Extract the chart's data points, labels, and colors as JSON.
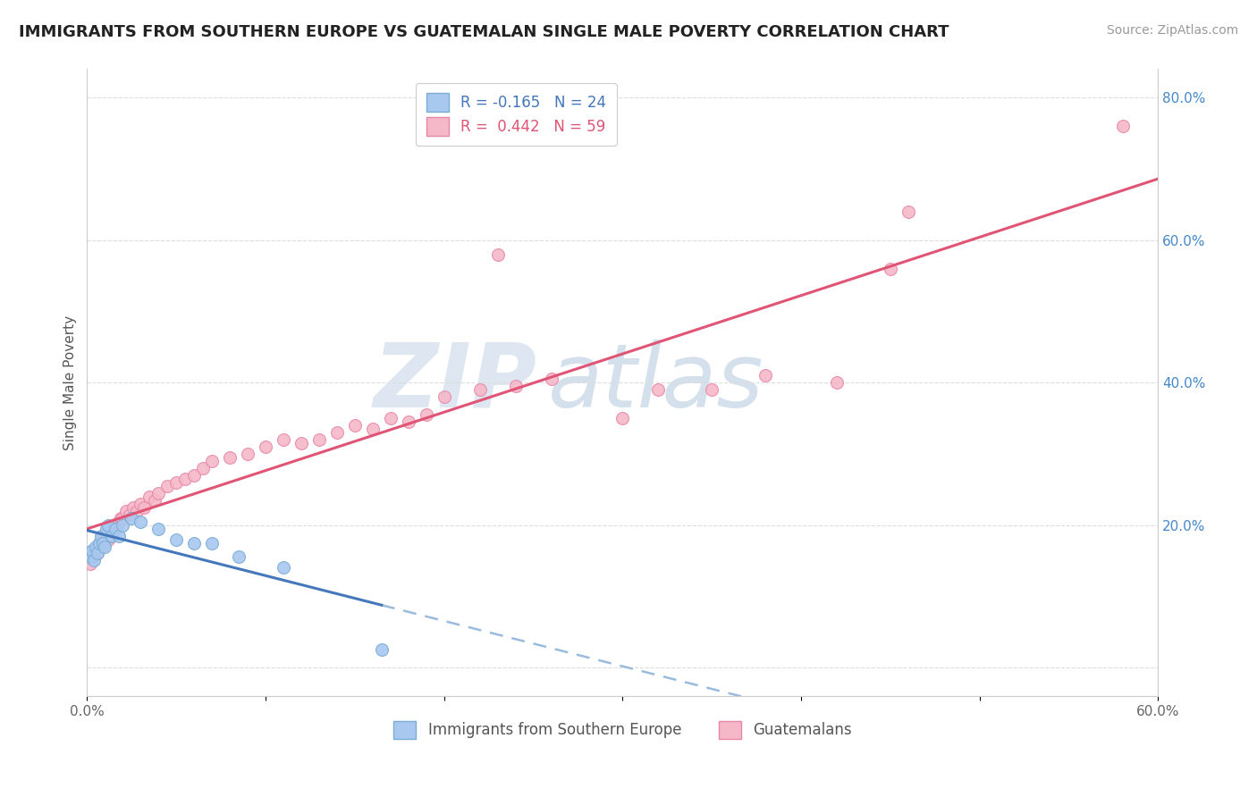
{
  "title": "IMMIGRANTS FROM SOUTHERN EUROPE VS GUATEMALAN SINGLE MALE POVERTY CORRELATION CHART",
  "source": "Source: ZipAtlas.com",
  "xlabel": "",
  "ylabel": "Single Male Poverty",
  "xlim": [
    0.0,
    0.6
  ],
  "ylim": [
    -0.04,
    0.84
  ],
  "xticks": [
    0.0,
    0.1,
    0.2,
    0.3,
    0.4,
    0.5,
    0.6
  ],
  "xticklabels": [
    "0.0%",
    "",
    "",
    "",
    "",
    "",
    "60.0%"
  ],
  "ytick_positions": [
    0.0,
    0.2,
    0.4,
    0.6,
    0.8
  ],
  "yticklabels_right": [
    "",
    "20.0%",
    "40.0%",
    "60.0%",
    "80.0%"
  ],
  "r_blue": -0.165,
  "n_blue": 24,
  "r_pink": 0.442,
  "n_pink": 59,
  "blue_scatter_x": [
    0.002,
    0.003,
    0.004,
    0.005,
    0.006,
    0.007,
    0.008,
    0.009,
    0.01,
    0.011,
    0.012,
    0.014,
    0.016,
    0.018,
    0.02,
    0.025,
    0.03,
    0.04,
    0.05,
    0.06,
    0.07,
    0.085,
    0.11,
    0.165
  ],
  "blue_scatter_y": [
    0.155,
    0.165,
    0.15,
    0.17,
    0.16,
    0.175,
    0.185,
    0.175,
    0.17,
    0.195,
    0.2,
    0.185,
    0.195,
    0.185,
    0.2,
    0.21,
    0.205,
    0.195,
    0.18,
    0.175,
    0.175,
    0.155,
    0.14,
    0.025
  ],
  "pink_scatter_x": [
    0.002,
    0.003,
    0.004,
    0.005,
    0.006,
    0.007,
    0.008,
    0.009,
    0.01,
    0.011,
    0.012,
    0.013,
    0.014,
    0.015,
    0.016,
    0.017,
    0.018,
    0.019,
    0.02,
    0.022,
    0.024,
    0.026,
    0.028,
    0.03,
    0.032,
    0.035,
    0.038,
    0.04,
    0.045,
    0.05,
    0.055,
    0.06,
    0.065,
    0.07,
    0.08,
    0.09,
    0.1,
    0.11,
    0.12,
    0.13,
    0.14,
    0.15,
    0.16,
    0.17,
    0.18,
    0.19,
    0.2,
    0.22,
    0.24,
    0.26,
    0.3,
    0.32,
    0.35,
    0.38,
    0.42,
    0.45,
    0.46,
    0.58,
    0.23
  ],
  "pink_scatter_y": [
    0.145,
    0.155,
    0.16,
    0.165,
    0.16,
    0.175,
    0.17,
    0.185,
    0.175,
    0.19,
    0.18,
    0.195,
    0.185,
    0.2,
    0.195,
    0.2,
    0.205,
    0.21,
    0.21,
    0.22,
    0.215,
    0.225,
    0.22,
    0.23,
    0.225,
    0.24,
    0.235,
    0.245,
    0.255,
    0.26,
    0.265,
    0.27,
    0.28,
    0.29,
    0.295,
    0.3,
    0.31,
    0.32,
    0.315,
    0.32,
    0.33,
    0.34,
    0.335,
    0.35,
    0.345,
    0.355,
    0.38,
    0.39,
    0.395,
    0.405,
    0.35,
    0.39,
    0.39,
    0.41,
    0.4,
    0.56,
    0.64,
    0.76,
    0.58
  ],
  "blue_color": "#a8c8f0",
  "blue_edge_color": "#7aacd4",
  "pink_color": "#f5b8c8",
  "pink_edge_color": "#e888a8",
  "blue_line_color": "#4477bb",
  "pink_line_color": "#e05575",
  "dashed_line_color": "#99bbdd",
  "grid_color": "#dddddd",
  "background_color": "#ffffff",
  "watermark_zip": "ZIP",
  "watermark_atlas": "atlas",
  "watermark_color_zip": "#c8d8e8",
  "watermark_color_atlas": "#b8cce0"
}
